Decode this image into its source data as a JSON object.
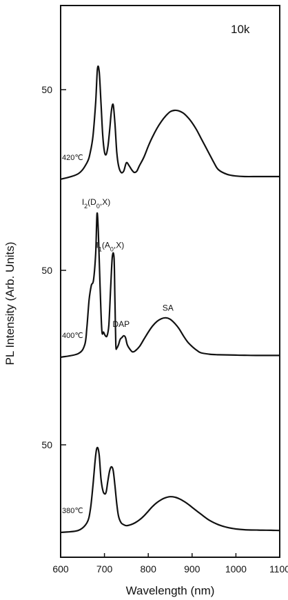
{
  "chart_data": {
    "type": "line",
    "xlabel": "Wavelength (nm)",
    "ylabel": "PL Intensity (Arb. Units)",
    "xlim": [
      600,
      1100
    ],
    "x_ticks": [
      "600",
      "700",
      "800",
      "900",
      "1000",
      "1100"
    ],
    "y_tick_label": "50",
    "temperature_label": "10k",
    "grid": false,
    "series": [
      {
        "name": "420℃",
        "offset": 2,
        "x": [
          600,
          640,
          660,
          668,
          674,
          680,
          684,
          688,
          692,
          696,
          700,
          704,
          708,
          712,
          716,
          720,
          724,
          728,
          732,
          738,
          744,
          750,
          756,
          762,
          768,
          774,
          780,
          790,
          800,
          810,
          820,
          830,
          840,
          850,
          860,
          870,
          880,
          890,
          900,
          910,
          920,
          930,
          940,
          950,
          960,
          980,
          1000,
          1020,
          1050,
          1080,
          1100
        ],
        "y": [
          0,
          2,
          6,
          10,
          16,
          28,
          40,
          39,
          28,
          16,
          10,
          9,
          12,
          18,
          25,
          27,
          20,
          10,
          5,
          2.5,
          3,
          6,
          5,
          3.5,
          2.5,
          3,
          5,
          8,
          12,
          15.5,
          18.5,
          21,
          23,
          24.5,
          25,
          24.8,
          24,
          22.5,
          20.5,
          18,
          15,
          12,
          9,
          6,
          3.5,
          1.8,
          1.2,
          1,
          1,
          1,
          1
        ]
      },
      {
        "name": "400℃",
        "offset": 1,
        "x": [
          600,
          640,
          655,
          660,
          665,
          670,
          675,
          680,
          683,
          686,
          690,
          694,
          698,
          702,
          706,
          710,
          714,
          718,
          722,
          724,
          726,
          728,
          732,
          736,
          740,
          744,
          748,
          752,
          758,
          764,
          770,
          780,
          790,
          800,
          810,
          820,
          830,
          840,
          850,
          860,
          870,
          880,
          890,
          900,
          910,
          920,
          940,
          960,
          980,
          1000,
          1020,
          1050,
          1080,
          1100
        ],
        "y": [
          0,
          2,
          7,
          17,
          32,
          40,
          43,
          58,
          80,
          70,
          40,
          15,
          14,
          12,
          12,
          18,
          38,
          56,
          55,
          30,
          7,
          5,
          7,
          10,
          11,
          12,
          11,
          7,
          4.5,
          3,
          3.5,
          6,
          10,
          14,
          17.5,
          20,
          21.5,
          22,
          21.2,
          19,
          16,
          12,
          8.5,
          6,
          4,
          2.5,
          1.7,
          1.4,
          1.3,
          1.2,
          1.1,
          1,
          1,
          1
        ]
      },
      {
        "name": "380℃",
        "offset": 0,
        "x": [
          600,
          640,
          660,
          668,
          674,
          680,
          684,
          688,
          692,
          696,
          700,
          704,
          708,
          712,
          716,
          720,
          724,
          728,
          732,
          738,
          744,
          750,
          760,
          770,
          780,
          790,
          800,
          810,
          820,
          830,
          840,
          850,
          860,
          870,
          880,
          890,
          900,
          920,
          940,
          960,
          980,
          1000,
          1020,
          1050,
          1080,
          1100
        ],
        "y": [
          0,
          1,
          5,
          12,
          25,
          40,
          44,
          40,
          28,
          22,
          20,
          21,
          27,
          32,
          34,
          32,
          24,
          15,
          8.5,
          5,
          4,
          3.5,
          4,
          5,
          6.5,
          8.5,
          11,
          13.5,
          15.5,
          17,
          18,
          18.5,
          18.3,
          17.5,
          16.3,
          14.8,
          13,
          9.5,
          6.2,
          4,
          2.6,
          1.8,
          1.4,
          1.2,
          1.1,
          1
        ]
      }
    ],
    "annotations": [
      {
        "text": "I",
        "sub": "2",
        "rest": "(D",
        "sub2": "0",
        "tail": ",X)",
        "x": 681,
        "y": 85,
        "series": 1
      },
      {
        "text": "I",
        "sub": "1",
        "rest": "(A",
        "sub2": "0",
        "tail": ",X)",
        "x": 713,
        "y": 61,
        "series": 1
      },
      {
        "text": "DAP",
        "x": 738,
        "y": 17,
        "series": 1
      },
      {
        "text": "SA",
        "x": 845,
        "y": 26,
        "series": 1
      }
    ]
  }
}
